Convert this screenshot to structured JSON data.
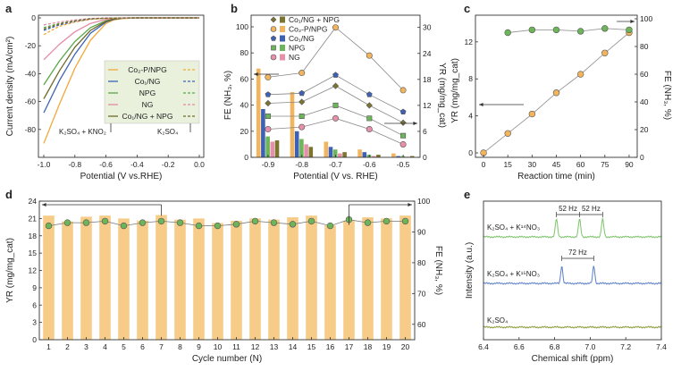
{
  "chart_data": [
    {
      "panel": "a",
      "type": "line",
      "xlabel": "Potential (V vs.RHE)",
      "ylabel": "Current density (mA/cm²)",
      "xlim": [
        -1.0,
        0.0
      ],
      "ylim": [
        -100,
        0
      ],
      "xticks": [
        "-1.0",
        "-0.8",
        "-0.6",
        "-0.4",
        "-0.2",
        "0.0"
      ],
      "yticks": [
        "0",
        "-20",
        "-40",
        "-60",
        "-80"
      ],
      "legend": [
        "Co₂-P/NPG",
        "Co₁/NG",
        "NPG",
        "NG",
        "Co₁/NG + NPG"
      ],
      "legend_position": "right",
      "annotations": [
        "K₂SO₄ + KNO₂",
        "K₂SO₄"
      ],
      "series": [
        {
          "name": "Co₂-P/NPG",
          "color": "#f2a93b",
          "solution": "K₂SO₄ + KNO₂",
          "x": [
            -1.0,
            -0.9,
            -0.8,
            -0.7,
            -0.6,
            -0.55,
            -0.5,
            -0.4,
            -0.2,
            0.0
          ],
          "y": [
            -90,
            -62,
            -36,
            -16,
            -4,
            -1.5,
            -0.5,
            0,
            0,
            0
          ]
        },
        {
          "name": "Co₁/NG",
          "color": "#3d63b8",
          "solution": "K₂SO₄ + KNO₂",
          "x": [
            -1.0,
            -0.9,
            -0.8,
            -0.7,
            -0.6,
            -0.55,
            -0.5,
            -0.4,
            -0.2,
            0.0
          ],
          "y": [
            -68,
            -45,
            -26,
            -11,
            -3,
            -1,
            -0.3,
            0,
            0,
            0
          ]
        },
        {
          "name": "NPG",
          "color": "#5aa84a",
          "solution": "K₂SO₄ + KNO₂",
          "x": [
            -1.0,
            -0.9,
            -0.8,
            -0.7,
            -0.6,
            -0.55,
            -0.5,
            -0.4,
            -0.2,
            0.0
          ],
          "y": [
            -48,
            -31,
            -17,
            -7,
            -2,
            -0.7,
            -0.2,
            0,
            0,
            0
          ]
        },
        {
          "name": "NG",
          "color": "#e48aa6",
          "solution": "K₂SO₄ + KNO₂",
          "x": [
            -1.0,
            -0.9,
            -0.8,
            -0.7,
            -0.6,
            -0.55,
            -0.5,
            -0.4,
            -0.2,
            0.0
          ],
          "y": [
            -30,
            -19,
            -10,
            -4,
            -1,
            -0.3,
            0,
            0,
            0,
            0
          ]
        },
        {
          "name": "Co₁/NG + NPG",
          "color": "#6e6a2a",
          "solution": "K₂SO₄ + KNO₂",
          "x": [
            -1.0,
            -0.9,
            -0.8,
            -0.7,
            -0.6,
            -0.55,
            -0.5,
            -0.4,
            -0.2,
            0.0
          ],
          "y": [
            -58,
            -38,
            -21,
            -9,
            -2.5,
            -0.8,
            -0.2,
            0,
            0,
            0
          ]
        },
        {
          "name": "Co₂-P/NPG",
          "color": "#f2a93b",
          "dash": true,
          "solution": "K₂SO₄",
          "x": [
            -1.0,
            -0.9,
            -0.8,
            -0.7,
            -0.6,
            -0.4,
            0.0
          ],
          "y": [
            -12,
            -6,
            -3,
            -1,
            -0.3,
            0,
            0
          ]
        },
        {
          "name": "Co₁/NG",
          "color": "#3d63b8",
          "dash": true,
          "solution": "K₂SO₄",
          "x": [
            -1.0,
            -0.9,
            -0.8,
            -0.7,
            -0.6,
            -0.4,
            0.0
          ],
          "y": [
            -9,
            -5,
            -2.5,
            -0.8,
            -0.2,
            0,
            0
          ]
        },
        {
          "name": "NPG",
          "color": "#5aa84a",
          "dash": true,
          "solution": "K₂SO₄",
          "x": [
            -1.0,
            -0.9,
            -0.8,
            -0.7,
            -0.6,
            -0.4,
            0.0
          ],
          "y": [
            -7,
            -4,
            -2,
            -0.6,
            -0.2,
            0,
            0
          ]
        },
        {
          "name": "NG",
          "color": "#e48aa6",
          "dash": true,
          "solution": "K₂SO₄",
          "x": [
            -1.0,
            -0.9,
            -0.8,
            -0.7,
            -0.6,
            -0.4,
            0.0
          ],
          "y": [
            -5,
            -3,
            -1.5,
            -0.4,
            -0.1,
            0,
            0
          ]
        },
        {
          "name": "Co₁/NG + NPG",
          "color": "#6e6a2a",
          "dash": true,
          "solution": "K₂SO₄",
          "x": [
            -1.0,
            -0.9,
            -0.8,
            -0.7,
            -0.6,
            -0.4,
            0.0
          ],
          "y": [
            -8,
            -4.5,
            -2.2,
            -0.7,
            -0.2,
            0,
            0
          ]
        }
      ]
    },
    {
      "panel": "b",
      "type": "bar+line",
      "xlabel": "Potential (V vs. RHE)",
      "ylabel_left": "FE (NH₃, %)",
      "ylabel_right": "YR (mg/mg_cat)",
      "categories": [
        "-0.9",
        "-0.8",
        "-0.7",
        "-0.6",
        "-0.5"
      ],
      "ylim_left": [
        0,
        100
      ],
      "ylim_right": [
        0,
        32
      ],
      "yticks_left": [
        "0",
        "20",
        "40",
        "60",
        "80",
        "100"
      ],
      "yticks_right": [
        "0",
        "6",
        "12",
        "18",
        "24",
        "30"
      ],
      "legend": [
        "Co₁/NG + NPG",
        "Co₂-P/NPG",
        "Co₁/NG",
        "NPG",
        "NG"
      ],
      "legend_position": "top-right",
      "fe_series": [
        {
          "name": "Co₂-P/NPG",
          "color": "#f2b45c",
          "values": [
            68,
            50,
            12,
            6,
            3
          ]
        },
        {
          "name": "Co₁/NG",
          "color": "#3e61b5",
          "values": [
            37,
            20,
            8,
            4,
            1
          ]
        },
        {
          "name": "NPG",
          "color": "#6cb558",
          "values": [
            16,
            14,
            6,
            2,
            1
          ]
        },
        {
          "name": "NG",
          "color": "#e690aa",
          "values": [
            12,
            10,
            3,
            1,
            0.5
          ]
        },
        {
          "name": "Co₁/NG + NPG",
          "color": "#7b7530",
          "values": [
            13,
            8,
            4,
            2,
            1
          ]
        }
      ],
      "yr_series": [
        {
          "name": "Co₂-P/NPG",
          "color": "#f2b45c",
          "values": [
            18.5,
            19.5,
            30,
            23.5,
            15.5
          ]
        },
        {
          "name": "Co₁/NG",
          "color": "#3e61b5",
          "values": [
            14.5,
            14.8,
            19,
            14.5,
            10.5
          ]
        },
        {
          "name": "Co₁/NG + NPG",
          "color": "#7b7530",
          "values": [
            12.5,
            12.8,
            16.5,
            12,
            8
          ]
        },
        {
          "name": "NPG",
          "color": "#6cb558",
          "values": [
            9.5,
            9.5,
            12,
            9,
            5
          ]
        },
        {
          "name": "NG",
          "color": "#e690aa",
          "values": [
            6.5,
            7,
            9,
            6.5,
            3
          ]
        }
      ]
    },
    {
      "panel": "c",
      "type": "scatter",
      "xlabel": "Reaction time (min)",
      "ylabel_left": "YR (mg/mg_cat)",
      "ylabel_right": "FE (NH₃, %)",
      "xlim": [
        -5,
        95
      ],
      "ylim_left": [
        0,
        14.5
      ],
      "ylim_right": [
        0,
        100
      ],
      "xticks": [
        "0",
        "15",
        "30",
        "45",
        "60",
        "75",
        "90"
      ],
      "yticks_left": [
        "0",
        "4",
        "8",
        "12"
      ],
      "yticks_right": [
        "0",
        "20",
        "40",
        "60",
        "80",
        "100"
      ],
      "yr": {
        "x": [
          0,
          15,
          30,
          45,
          60,
          75,
          90
        ],
        "y": [
          0,
          2.1,
          4.2,
          6.5,
          8.5,
          10.8,
          13
        ],
        "color": "#f2b45c"
      },
      "fe": {
        "x": [
          15,
          30,
          45,
          60,
          75,
          90
        ],
        "y": [
          90,
          92,
          92,
          91,
          93,
          92
        ],
        "color": "#6cb558"
      }
    },
    {
      "panel": "d",
      "type": "bar+line",
      "xlabel": "Cycle number (N)",
      "ylabel_left": "YR (mg/mg_cat)",
      "ylabel_right": "FE (NH₃, %)",
      "categories": [
        "1",
        "2",
        "3",
        "4",
        "5",
        "6",
        "7",
        "8",
        "9",
        "10",
        "11",
        "12",
        "13",
        "14",
        "15",
        "16",
        "17",
        "18",
        "19",
        "20"
      ],
      "ylim_left": [
        0,
        24
      ],
      "ylim_right": [
        55,
        100
      ],
      "yticks_left": [
        "0",
        "3",
        "6",
        "9",
        "12",
        "15",
        "18",
        "21",
        "24"
      ],
      "yticks_right": [
        "60",
        "70",
        "80",
        "90",
        "100"
      ],
      "yr": {
        "color": "#f6cc88",
        "values": [
          21.5,
          20.5,
          21.3,
          21.5,
          21,
          20.6,
          21.6,
          20.8,
          21,
          20.2,
          20.6,
          21,
          20.8,
          21.2,
          21.5,
          19.8,
          20.6,
          21.2,
          21,
          21.5
        ]
      },
      "fe": {
        "color": "#6cb558",
        "values": [
          92,
          93,
          93,
          93.5,
          92,
          93,
          93.5,
          93,
          92,
          92,
          92.5,
          93.5,
          93,
          92.5,
          93.5,
          92,
          94,
          93,
          93.5,
          93.5
        ]
      }
    },
    {
      "panel": "e",
      "type": "line",
      "xlabel": "Chemical shift (ppm)",
      "ylabel": "Intensity (a.u.)",
      "xlim": [
        6.4,
        7.4
      ],
      "xticks": [
        "6.4",
        "6.6",
        "6.8",
        "7.0",
        "7.2",
        "7.4"
      ],
      "series": [
        {
          "name": "K₂SO₄ + K¹⁴NO₃",
          "color": "#7cc46a",
          "peaks_ppm": [
            6.81,
            6.94,
            7.07
          ],
          "annotations": [
            "52 Hz",
            "52 Hz"
          ]
        },
        {
          "name": "K₂SO₄ + K¹⁵NO₃",
          "color": "#5a7fc6",
          "peaks_ppm": [
            6.84,
            7.02
          ],
          "annotations": [
            "72 Hz"
          ]
        },
        {
          "name": "K₂SO₄",
          "color": "#8a9a3a",
          "peaks_ppm": []
        }
      ]
    }
  ],
  "figure": {
    "panel_labels": [
      "a",
      "b",
      "c",
      "d",
      "e"
    ]
  }
}
